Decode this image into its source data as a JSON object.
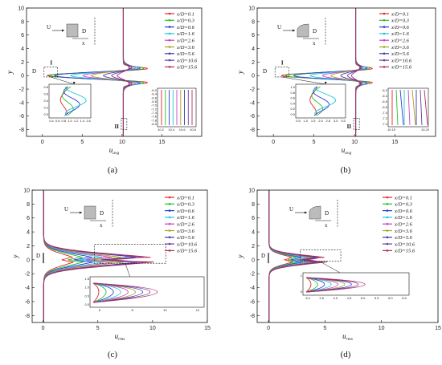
{
  "chart_data": [
    {
      "type": "line",
      "panel_label": "(a)",
      "xlabel_main": "u",
      "xlabel_sub": "avg",
      "ylabel": "y",
      "xlim": [
        -2,
        20
      ],
      "ylim": [
        -9,
        10
      ],
      "xticks": [
        "0",
        "5",
        "10",
        "15"
      ],
      "yticks": [
        "-8",
        "-6",
        "-4",
        "-2",
        "0",
        "2",
        "4",
        "6",
        "8",
        "10"
      ],
      "annotations": {
        "U": "U",
        "D": "D",
        "x": "x",
        "D_side": "D",
        "box1": "I",
        "box2": "II"
      },
      "legend": [
        "x/D=0.1",
        "x/D=0.3",
        "x/D=0.6",
        "x/D=1.6",
        "x/D=2.6",
        "x/D=3.6",
        "x/D=5.6",
        "x/D=10.6",
        "x/D=15.6"
      ],
      "inset1_ticks_x": [
        "0.4",
        "0.6",
        "0.8",
        "1.0",
        "1.2",
        "1.4",
        "1.6"
      ],
      "inset1_ticks_y": [
        "0.8",
        "0.6",
        "0.4",
        "0.2",
        "0.0"
      ],
      "inset2_ticks_x": [
        "10.2",
        "10.4",
        "10.6",
        "10.8"
      ],
      "inset2_ticks_y": [
        "-6.2",
        "-6.4",
        "-6.6",
        "-6.8",
        "-7.0",
        "-7.2",
        "-7.4",
        "-7.6",
        "-7.8",
        "-8.0"
      ],
      "series": [
        {
          "name": "x/D=0.1",
          "color": "#e8242a",
          "peak": 13.5,
          "dip": 0.6
        },
        {
          "name": "x/D=0.3",
          "color": "#22c22a",
          "peak": 13.2,
          "dip": 0.9
        },
        {
          "name": "x/D=0.6",
          "color": "#2a3bd6",
          "peak": 12.9,
          "dip": 1.5
        },
        {
          "name": "x/D=1.6",
          "color": "#1ec8d8",
          "peak": 12.6,
          "dip": 3.5
        },
        {
          "name": "x/D=2.6",
          "color": "#d43cc8",
          "peak": 12.3,
          "dip": 5.0
        },
        {
          "name": "x/D=3.6",
          "color": "#a8a020",
          "peak": 12.0,
          "dip": 6.0
        },
        {
          "name": "x/D=5.6",
          "color": "#3a3aa8",
          "peak": 11.7,
          "dip": 7.5
        },
        {
          "name": "x/D=10.6",
          "color": "#6a3aa8",
          "peak": 11.4,
          "dip": 8.5
        },
        {
          "name": "x/D=15.6",
          "color": "#b03060",
          "peak": 11.1,
          "dip": 9.2
        }
      ]
    },
    {
      "type": "line",
      "panel_label": "(b)",
      "xlabel_main": "u",
      "xlabel_sub": "avg",
      "ylabel": "y",
      "xlim": [
        -2,
        20
      ],
      "ylim": [
        -9,
        10
      ],
      "xticks": [
        "0",
        "5",
        "10",
        "15"
      ],
      "yticks": [
        "-8",
        "-6",
        "-4",
        "-2",
        "0",
        "2",
        "4",
        "6",
        "8",
        "10"
      ],
      "annotations": {
        "U": "U",
        "D": "D",
        "x": "x",
        "D_side": "D",
        "box1": "I",
        "box2": "II"
      },
      "legend": [
        "x/D=0.1",
        "x/D=0.3",
        "x/D=0.6",
        "x/D=1.6",
        "x/D=2.6",
        "x/D=3.6",
        "x/D=5.6",
        "x/D=10.6",
        "x/D=15.6"
      ],
      "inset1_ticks_x": [
        "0.5",
        "1.0",
        "1.5",
        "2.0",
        "2.5",
        "3.0",
        "3.5"
      ],
      "inset1_ticks_y": [
        "1.0",
        "0.8",
        "0.6",
        "0.4",
        "0.2",
        "0.0"
      ],
      "inset2_ticks_x": [
        "10.15",
        "10.20"
      ],
      "inset2_ticks_y": [
        "-6.2",
        "-6.4",
        "-6.6",
        "-6.8",
        "-7.0",
        "-7.2",
        "-7.4"
      ],
      "series": [
        {
          "name": "x/D=0.1",
          "color": "#e8242a",
          "peak": 12.5,
          "dip": 1.0
        },
        {
          "name": "x/D=0.3",
          "color": "#22c22a",
          "peak": 12.3,
          "dip": 1.5
        },
        {
          "name": "x/D=0.6",
          "color": "#2a3bd6",
          "peak": 12.1,
          "dip": 2.5
        },
        {
          "name": "x/D=1.6",
          "color": "#1ec8d8",
          "peak": 11.9,
          "dip": 4.5
        },
        {
          "name": "x/D=2.6",
          "color": "#d43cc8",
          "peak": 11.6,
          "dip": 6.0
        },
        {
          "name": "x/D=3.6",
          "color": "#a8a020",
          "peak": 11.4,
          "dip": 7.0
        },
        {
          "name": "x/D=5.6",
          "color": "#3a3aa8",
          "peak": 11.2,
          "dip": 8.2
        },
        {
          "name": "x/D=10.6",
          "color": "#6a3aa8",
          "peak": 11.0,
          "dip": 9.0
        },
        {
          "name": "x/D=15.6",
          "color": "#b03060",
          "peak": 10.8,
          "dip": 9.5
        }
      ]
    },
    {
      "type": "line",
      "panel_label": "(c)",
      "xlabel_main": "u",
      "xlabel_sub": "rms",
      "ylabel": "y",
      "xlim": [
        -1,
        15
      ],
      "ylim": [
        -9,
        10
      ],
      "xticks": [
        "0",
        "5",
        "10",
        "15"
      ],
      "yticks": [
        "-8",
        "-6",
        "-4",
        "-2",
        "0",
        "2",
        "4",
        "6",
        "8",
        "10"
      ],
      "annotations": {
        "U": "U",
        "D": "D",
        "x": "x",
        "D_side": "D"
      },
      "legend": [
        "x/D=0.1",
        "x/D=0.3",
        "x/D=0.6",
        "x/D=1.6",
        "x/D=2.6",
        "x/D=3.6",
        "x/D=5.6",
        "x/D=10.6",
        "x/D=15.6"
      ],
      "inset_ticks_x": [
        "6",
        "8",
        "10",
        "12"
      ],
      "inset_ticks_y": [
        "1.5",
        "1.0",
        "0.5",
        "0.0"
      ],
      "series": [
        {
          "name": "x/D=0.1",
          "color": "#e8242a",
          "peak": 3.0
        },
        {
          "name": "x/D=0.3",
          "color": "#22c22a",
          "peak": 4.0
        },
        {
          "name": "x/D=0.6",
          "color": "#2a3bd6",
          "peak": 5.0
        },
        {
          "name": "x/D=1.6",
          "color": "#1ec8d8",
          "peak": 6.0
        },
        {
          "name": "x/D=2.6",
          "color": "#d43cc8",
          "peak": 7.0
        },
        {
          "name": "x/D=3.6",
          "color": "#a8a020",
          "peak": 8.0
        },
        {
          "name": "x/D=5.6",
          "color": "#3a3aa8",
          "peak": 9.5
        },
        {
          "name": "x/D=10.6",
          "color": "#6a3aa8",
          "peak": 10.3
        },
        {
          "name": "x/D=15.6",
          "color": "#b03060",
          "peak": 11.0
        }
      ]
    },
    {
      "type": "line",
      "panel_label": "(d)",
      "xlabel_main": "u",
      "xlabel_sub": "rms",
      "ylabel": "y",
      "xlim": [
        -1,
        15
      ],
      "ylim": [
        -9,
        10
      ],
      "xticks": [
        "0",
        "5",
        "10",
        "15"
      ],
      "yticks": [
        "-8",
        "-6",
        "-4",
        "-2",
        "0",
        "2",
        "4",
        "6",
        "8",
        "10"
      ],
      "annotations": {
        "U": "U",
        "D": "D",
        "x": "x",
        "D_side": "D"
      },
      "legend": [
        "x/D=0.1",
        "x/D=0.3",
        "x/D=0.6",
        "x/D=1.6",
        "x/D=2.6",
        "x/D=3.6",
        "x/D=5.6",
        "x/D=10.6",
        "x/D=15.6"
      ],
      "inset_ticks_x": [
        "3.0",
        "3.5",
        "4.0",
        "4.5",
        "5.0",
        "5.5",
        "6.0",
        "6.5"
      ],
      "inset_ticks_y": [
        "1",
        "0"
      ],
      "series": [
        {
          "name": "x/D=0.1",
          "color": "#e8242a",
          "peak": 2.5
        },
        {
          "name": "x/D=0.3",
          "color": "#22c22a",
          "peak": 3.0
        },
        {
          "name": "x/D=0.6",
          "color": "#2a3bd6",
          "peak": 3.5
        },
        {
          "name": "x/D=1.6",
          "color": "#1ec8d8",
          "peak": 4.0
        },
        {
          "name": "x/D=2.6",
          "color": "#d43cc8",
          "peak": 4.5
        },
        {
          "name": "x/D=3.6",
          "color": "#a8a020",
          "peak": 4.8
        },
        {
          "name": "x/D=5.6",
          "color": "#3a3aa8",
          "peak": 5.2
        },
        {
          "name": "x/D=10.6",
          "color": "#6a3aa8",
          "peak": 5.6
        },
        {
          "name": "x/D=15.6",
          "color": "#b03060",
          "peak": 6.0
        }
      ]
    }
  ]
}
